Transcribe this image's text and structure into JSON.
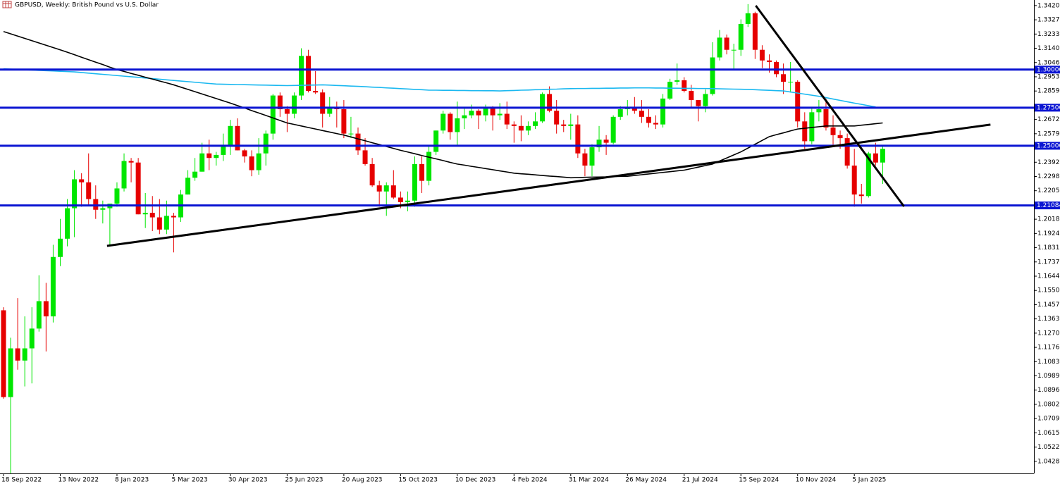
{
  "chart_data": {
    "type": "candlestick",
    "title": "GBPUSD, Weekly:  British Pound vs U.S. Dollar",
    "categories": [
      "18 Sep 2022",
      null,
      null,
      null,
      null,
      null,
      null,
      null,
      "13 Nov 2022",
      null,
      null,
      null,
      null,
      null,
      null,
      null,
      "8 Jan 2023",
      null,
      null,
      null,
      null,
      null,
      null,
      null,
      "5 Mar 2023",
      null,
      null,
      null,
      null,
      null,
      null,
      null,
      "30 Apr 2023",
      null,
      null,
      null,
      null,
      null,
      null,
      null,
      "25 Jun 2023",
      null,
      null,
      null,
      null,
      null,
      null,
      null,
      "20 Aug 2023",
      null,
      null,
      null,
      null,
      null,
      null,
      null,
      "15 Oct 2023",
      null,
      null,
      null,
      null,
      null,
      null,
      null,
      "10 Dec 2023",
      null,
      null,
      null,
      null,
      null,
      null,
      null,
      "4 Feb 2024",
      null,
      null,
      null,
      null,
      null,
      null,
      null,
      "31 Mar 2024",
      null,
      null,
      null,
      null,
      null,
      null,
      null,
      "26 May 2024",
      null,
      null,
      null,
      null,
      null,
      null,
      null,
      "21 Jul 2024",
      null,
      null,
      null,
      null,
      null,
      null,
      null,
      "15 Sep 2024",
      null,
      null,
      null,
      null,
      null,
      null,
      null,
      "10 Nov 2024",
      null,
      null,
      null,
      null,
      null,
      null,
      null,
      "5 Jan 2025",
      null,
      null,
      null,
      null
    ],
    "open": [
      1.142,
      1.085,
      1.117,
      1.109,
      1.117,
      1.13,
      1.148,
      1.138,
      1.177,
      1.189,
      1.209,
      1.228,
      1.226,
      1.215,
      1.208,
      1.209,
      1.212,
      1.222,
      1.24,
      1.239,
      1.205,
      1.206,
      1.203,
      1.195,
      1.204,
      1.203,
      1.218,
      1.229,
      1.233,
      1.245,
      1.242,
      1.244,
      1.25,
      1.263,
      1.247,
      1.243,
      1.234,
      1.245,
      1.258,
      1.283,
      1.274,
      1.271,
      1.283,
      1.309,
      1.286,
      1.285,
      1.271,
      1.275,
      1.274,
      1.258,
      1.258,
      1.247,
      1.238,
      1.224,
      1.22,
      1.224,
      1.216,
      1.213,
      1.214,
      1.238,
      1.227,
      1.246,
      1.26,
      1.271,
      1.259,
      1.268,
      1.27,
      1.273,
      1.27,
      1.275,
      1.27,
      1.271,
      1.264,
      1.263,
      1.26,
      1.263,
      1.266,
      1.284,
      1.273,
      1.264,
      1.263,
      1.264,
      1.245,
      1.237,
      1.249,
      1.254,
      1.252,
      1.269,
      1.274,
      1.275,
      1.273,
      1.269,
      1.265,
      1.264,
      1.281,
      1.292,
      1.293,
      1.286,
      1.28,
      1.276,
      1.284,
      1.308,
      1.321,
      1.313,
      1.313,
      1.33,
      1.337,
      1.313,
      1.306,
      1.305,
      1.297,
      1.292,
      1.292,
      1.266,
      1.253,
      1.272,
      1.274,
      1.262,
      1.257,
      1.255,
      1.237,
      1.218,
      1.217,
      1.245,
      1.239
    ],
    "high": [
      1.144,
      1.124,
      1.15,
      1.138,
      1.144,
      1.165,
      1.16,
      1.185,
      1.202,
      1.215,
      1.234,
      1.232,
      1.245,
      1.224,
      1.214,
      1.212,
      1.226,
      1.245,
      1.242,
      1.242,
      1.219,
      1.217,
      1.215,
      1.214,
      1.206,
      1.221,
      1.234,
      1.242,
      1.252,
      1.254,
      1.246,
      1.258,
      1.267,
      1.268,
      1.248,
      1.247,
      1.255,
      1.26,
      1.284,
      1.285,
      1.276,
      1.285,
      1.314,
      1.313,
      1.299,
      1.287,
      1.282,
      1.279,
      1.28,
      1.269,
      1.262,
      1.255,
      1.242,
      1.227,
      1.226,
      1.234,
      1.22,
      1.22,
      1.243,
      1.243,
      1.25,
      1.26,
      1.273,
      1.272,
      1.279,
      1.275,
      1.277,
      1.274,
      1.277,
      1.276,
      1.278,
      1.279,
      1.266,
      1.27,
      1.266,
      1.272,
      1.285,
      1.289,
      1.28,
      1.267,
      1.271,
      1.27,
      1.248,
      1.251,
      1.263,
      1.257,
      1.27,
      1.276,
      1.28,
      1.282,
      1.28,
      1.274,
      1.27,
      1.284,
      1.294,
      1.304,
      1.295,
      1.29,
      1.28,
      1.287,
      1.318,
      1.326,
      1.323,
      1.317,
      1.333,
      1.343,
      1.338,
      1.316,
      1.31,
      1.306,
      1.304,
      1.305,
      1.293,
      1.272,
      1.275,
      1.28,
      1.281,
      1.27,
      1.26,
      1.258,
      1.248,
      1.225,
      1.246,
      1.252,
      1.25
    ],
    "low": [
      1.084,
      1.035,
      1.103,
      1.092,
      1.094,
      1.128,
      1.115,
      1.134,
      1.171,
      1.184,
      1.19,
      1.21,
      1.211,
      1.202,
      1.199,
      1.184,
      1.21,
      1.22,
      1.226,
      1.205,
      1.196,
      1.194,
      1.192,
      1.192,
      1.18,
      1.2,
      1.218,
      1.227,
      1.233,
      1.234,
      1.237,
      1.24,
      1.244,
      1.247,
      1.239,
      1.23,
      1.231,
      1.237,
      1.254,
      1.269,
      1.259,
      1.268,
      1.28,
      1.285,
      1.284,
      1.262,
      1.269,
      1.262,
      1.255,
      1.255,
      1.244,
      1.237,
      1.223,
      1.21,
      1.204,
      1.215,
      1.209,
      1.207,
      1.21,
      1.219,
      1.224,
      1.244,
      1.258,
      1.254,
      1.25,
      1.261,
      1.268,
      1.261,
      1.266,
      1.26,
      1.267,
      1.261,
      1.252,
      1.253,
      1.257,
      1.261,
      1.265,
      1.272,
      1.258,
      1.259,
      1.254,
      1.242,
      1.23,
      1.23,
      1.246,
      1.244,
      1.251,
      1.267,
      1.27,
      1.271,
      1.265,
      1.262,
      1.261,
      1.262,
      1.28,
      1.29,
      1.285,
      1.275,
      1.266,
      1.272,
      1.283,
      1.306,
      1.31,
      1.3,
      1.309,
      1.328,
      1.307,
      1.301,
      1.298,
      1.295,
      1.284,
      1.285,
      1.262,
      1.248,
      1.251,
      1.266,
      1.26,
      1.25,
      1.248,
      1.235,
      1.21,
      1.212,
      1.216,
      1.237,
      1.225
    ],
    "close": [
      1.085,
      1.117,
      1.109,
      1.117,
      1.13,
      1.148,
      1.138,
      1.177,
      1.189,
      1.209,
      1.228,
      1.226,
      1.215,
      1.208,
      1.209,
      1.212,
      1.222,
      1.24,
      1.239,
      1.205,
      1.206,
      1.203,
      1.195,
      1.204,
      1.203,
      1.218,
      1.229,
      1.233,
      1.245,
      1.242,
      1.244,
      1.25,
      1.263,
      1.247,
      1.243,
      1.234,
      1.245,
      1.258,
      1.283,
      1.274,
      1.271,
      1.283,
      1.309,
      1.286,
      1.285,
      1.271,
      1.275,
      1.274,
      1.258,
      1.258,
      1.247,
      1.238,
      1.224,
      1.22,
      1.224,
      1.216,
      1.213,
      1.214,
      1.238,
      1.227,
      1.246,
      1.26,
      1.271,
      1.259,
      1.268,
      1.27,
      1.273,
      1.27,
      1.275,
      1.27,
      1.271,
      1.264,
      1.263,
      1.26,
      1.263,
      1.266,
      1.284,
      1.273,
      1.264,
      1.263,
      1.264,
      1.245,
      1.237,
      1.249,
      1.254,
      1.252,
      1.269,
      1.274,
      1.275,
      1.273,
      1.269,
      1.265,
      1.264,
      1.281,
      1.292,
      1.293,
      1.286,
      1.28,
      1.276,
      1.284,
      1.308,
      1.321,
      1.313,
      1.313,
      1.33,
      1.337,
      1.313,
      1.306,
      1.305,
      1.297,
      1.292,
      1.292,
      1.266,
      1.253,
      1.272,
      1.274,
      1.262,
      1.257,
      1.255,
      1.237,
      1.218,
      1.217,
      1.245,
      1.239,
      1.248
    ],
    "up_color": "#00e600",
    "down_color": "#e60000",
    "ylim": [
      1.0349,
      1.3457
    ],
    "yticks": [
      1.34205,
      {
        "value": 1.3327,
        "label": "1.33270"
      },
      1.32335,
      {
        "value": 1.314,
        "label": "1.31400"
      },
      1.30465,
      {
        "value": 1.2953,
        "label": "1.29530"
      },
      1.28595,
      1.26725,
      {
        "value": 1.2579,
        "label": "1.25790"
      },
      {
        "value": 1.2392,
        "label": "1.23920"
      },
      1.22985,
      {
        "value": 1.2205,
        "label": "1.22050"
      },
      {
        "value": 1.2018,
        "label": "1.20180"
      },
      1.19245,
      {
        "value": 1.1831,
        "label": "1.18310"
      },
      1.17375,
      {
        "value": 1.1644,
        "label": "1.16440"
      },
      1.15505,
      {
        "value": 1.1457,
        "label": "1.14570"
      },
      1.13635,
      {
        "value": 1.127,
        "label": "1.12700"
      },
      1.11765,
      {
        "value": 1.1083,
        "label": "1.10830"
      },
      1.09895,
      {
        "value": 1.0896,
        "label": "1.08960"
      },
      1.08025,
      {
        "value": 1.0709,
        "label": "1.07090"
      },
      1.06155,
      {
        "value": 1.0522,
        "label": "1.05220"
      },
      1.04285
    ],
    "moving_averages": [
      {
        "color": "#1ab8f0",
        "values": [
          1.3005,
          1.3003,
          1.3001,
          1.2999,
          1.2997,
          1.2995,
          1.2993,
          1.2991,
          1.2989,
          1.2987,
          1.2985,
          1.2981,
          1.2977,
          1.2973,
          1.2969,
          1.2965,
          1.2961,
          1.2957,
          1.2953,
          1.2949,
          1.2945,
          1.2941,
          1.2937,
          1.2933,
          1.2929,
          1.2925,
          1.2921,
          1.2917,
          1.2913,
          1.2909,
          1.2905,
          1.2904,
          1.2903,
          1.2902,
          1.2901,
          1.29,
          1.2899,
          1.2898,
          1.2897,
          1.2896,
          1.2895,
          1.2896,
          1.2897,
          1.2898,
          1.2899,
          1.29,
          1.2898,
          1.2896,
          1.2894,
          1.2892,
          1.289,
          1.2888,
          1.2885,
          1.2883,
          1.288,
          1.2878,
          1.2875,
          1.2873,
          1.287,
          1.2868,
          1.2865,
          1.2865,
          1.2864,
          1.2864,
          1.2863,
          1.2863,
          1.2862,
          1.2862,
          1.2861,
          1.2861,
          1.286,
          1.2862,
          1.2863,
          1.2865,
          1.2866,
          1.2868,
          1.2869,
          1.2871,
          1.2872,
          1.2874,
          1.2875,
          1.2876,
          1.2876,
          1.2877,
          1.2877,
          1.2878,
          1.2878,
          1.2879,
          1.2879,
          1.288,
          1.288,
          1.288,
          1.2879,
          1.2879,
          1.2878,
          1.2878,
          1.2877,
          1.2877,
          1.2876,
          1.2876,
          1.2875,
          1.2874,
          1.2873,
          1.2872,
          1.2871,
          1.287,
          1.2868,
          1.2866,
          1.2864,
          1.2862,
          1.286,
          1.2853,
          1.2846,
          1.2839,
          1.2832,
          1.2825,
          1.2816,
          1.2807,
          1.2798,
          1.2789,
          1.278,
          1.2772,
          1.2763,
          1.2755,
          null
        ]
      },
      {
        "color": "#000000",
        "values": [
          1.325,
          1.3235,
          1.322,
          1.3205,
          1.319,
          1.3175,
          1.316,
          1.3145,
          1.313,
          1.3114,
          1.3098,
          1.3081,
          1.3065,
          1.3049,
          1.3033,
          1.3016,
          1.3,
          1.2988,
          1.2975,
          1.2963,
          1.295,
          1.2938,
          1.2925,
          1.2913,
          1.29,
          1.2885,
          1.287,
          1.2855,
          1.284,
          1.2825,
          1.281,
          1.2795,
          1.278,
          1.2764,
          1.2748,
          1.2731,
          1.2715,
          1.2699,
          1.2683,
          1.2666,
          1.265,
          1.264,
          1.263,
          1.262,
          1.261,
          1.26,
          1.259,
          1.258,
          1.257,
          1.2558,
          1.2545,
          1.2533,
          1.252,
          1.2508,
          1.2495,
          1.2483,
          1.247,
          1.2459,
          1.2448,
          1.2436,
          1.2425,
          1.2414,
          1.2403,
          1.2391,
          1.238,
          1.2373,
          1.2365,
          1.2358,
          1.235,
          1.2343,
          1.2335,
          1.2328,
          1.232,
          1.2316,
          1.2313,
          1.2309,
          1.2305,
          1.2301,
          1.2298,
          1.2294,
          1.229,
          1.2291,
          1.2293,
          1.2294,
          1.2295,
          1.2296,
          1.2298,
          1.2299,
          1.23,
          1.2305,
          1.231,
          1.2315,
          1.232,
          1.2325,
          1.233,
          1.2335,
          1.234,
          1.235,
          1.236,
          1.237,
          1.238,
          1.24,
          1.242,
          1.244,
          1.246,
          1.2485,
          1.251,
          1.2535,
          1.256,
          1.2573,
          1.2585,
          1.2598,
          1.261,
          1.2615,
          1.262,
          1.2625,
          1.263,
          1.263,
          1.263,
          1.263,
          1.263,
          1.2635,
          1.264,
          1.2645,
          1.265
        ]
      }
    ],
    "trendlines": [
      {
        "color": "#000000",
        "x": [
          14.6,
          139.2
        ],
        "values": [
          1.1843,
          1.2639
        ]
      },
      {
        "color": "#000000",
        "x": [
          106.1,
          127.0
        ],
        "values": [
          1.342,
          1.2102
        ]
      }
    ],
    "level_color": "#0a14d2",
    "levels": [
      {
        "value": 1.3,
        "label": "1.30000"
      },
      {
        "value": 1.275,
        "label": "1.27500"
      },
      {
        "value": 1.25,
        "label": "1.25000"
      },
      1.21084
    ]
  }
}
